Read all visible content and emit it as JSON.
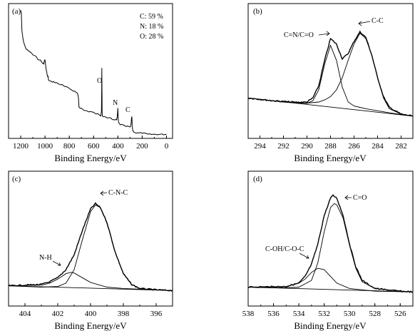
{
  "chart_data": [
    {
      "panel": "(a)",
      "type": "line",
      "xlabel": "Binding Energy/eV",
      "xlim": [
        1300,
        -50
      ],
      "ylim": [
        0,
        100
      ],
      "xticks": [
        1200,
        1000,
        800,
        600,
        400,
        200,
        0
      ],
      "composition": [
        "C: 59 %",
        "N: 18 %",
        "O: 28 %"
      ],
      "peak_labels": [
        {
          "label": "O",
          "x": 532,
          "y": 52
        },
        {
          "label": "N",
          "x": 400,
          "y": 22
        },
        {
          "label": "C",
          "x": 285,
          "y": 15
        }
      ],
      "series": [
        {
          "x": [
            1200,
            1195,
            1190,
            1180,
            1170,
            1160,
            1150,
            1140,
            1120,
            1100,
            1080,
            1060,
            1040,
            1020,
            1010,
            1005,
            1000,
            990,
            980,
            975,
            970,
            950,
            930,
            900,
            880,
            860,
            850,
            800,
            780,
            760,
            740,
            730,
            725,
            720,
            700,
            680,
            660,
            640,
            620,
            600,
            580,
            560,
            545,
            540,
            535,
            532,
            530,
            528,
            520,
            500,
            480,
            460,
            440,
            420,
            410,
            405,
            400,
            398,
            395,
            390,
            380,
            360,
            340,
            320,
            300,
            292,
            288,
            285,
            282,
            278,
            270,
            250,
            200,
            150,
            100,
            50,
            0
          ],
          "y": [
            95,
            93,
            80,
            73,
            70,
            67,
            66,
            65,
            64,
            62,
            61,
            59,
            58,
            56,
            55,
            58,
            58,
            51,
            46,
            46,
            43,
            42,
            42,
            41,
            40,
            40,
            39,
            37,
            36,
            35,
            34,
            33,
            30,
            23,
            22,
            21,
            21,
            20,
            20,
            19,
            18,
            18,
            17,
            17,
            20,
            52,
            20,
            17,
            16,
            16,
            15,
            15,
            14,
            14,
            14,
            16,
            22,
            16,
            12,
            11,
            10,
            10,
            9,
            9,
            8,
            10,
            15,
            16,
            9,
            6,
            5,
            4,
            4,
            3,
            3,
            3,
            3
          ]
        }
      ]
    },
    {
      "panel": "(b)",
      "type": "line",
      "xlabel": "Binding Energy/eV",
      "xlim": [
        295,
        281
      ],
      "ylim": [
        0,
        100
      ],
      "xticks": [
        294,
        292,
        290,
        288,
        286,
        284,
        282
      ],
      "peak_labels": [
        {
          "label": "C=N/C=O",
          "x": 287.9
        },
        {
          "label": "C-C",
          "x": 285.5
        }
      ],
      "series": [
        {
          "name": "C-C",
          "x": [
            295,
            294,
            293,
            292,
            291,
            290,
            289,
            288.5,
            288,
            287.5,
            287,
            286.5,
            286,
            285.5,
            285,
            284.5,
            284,
            283.5,
            283,
            282,
            281
          ],
          "y": [
            30,
            29,
            28,
            27,
            26.4,
            26.2,
            27,
            28.5,
            31,
            36,
            45,
            58,
            70,
            78,
            74,
            62,
            45,
            30,
            22,
            18,
            16.5
          ]
        },
        {
          "name": "C=N/C=O",
          "x": [
            295,
            292,
            290,
            289.5,
            289,
            288.5,
            288,
            287.5,
            287,
            286.5,
            286,
            285.5,
            285,
            283,
            281
          ],
          "y": [
            30,
            27,
            26,
            28,
            36,
            55,
            69,
            58,
            38,
            27,
            24,
            23,
            22,
            19,
            16.5
          ]
        },
        {
          "name": "envelope",
          "x": [
            295,
            293,
            291,
            290,
            289.5,
            289,
            288.5,
            288,
            287.5,
            287,
            286.5,
            286,
            285.5,
            285,
            284.5,
            284,
            283.5,
            283,
            282,
            281
          ],
          "y": [
            30,
            28,
            26.8,
            27,
            30,
            39,
            58,
            74,
            70,
            59,
            63,
            72,
            79,
            75,
            62,
            45,
            31,
            23,
            18,
            16.5
          ]
        }
      ]
    },
    {
      "panel": "(c)",
      "type": "line",
      "xlabel": "Binding Energy/eV",
      "xlim": [
        405,
        395
      ],
      "ylim": [
        0,
        100
      ],
      "xticks": [
        404,
        402,
        400,
        398,
        396
      ],
      "peak_labels": [
        {
          "label": "C-N-C",
          "x": 399.6
        },
        {
          "label": "N-H",
          "x": 401.2
        }
      ],
      "series": [
        {
          "name": "C-N-C",
          "x": [
            405,
            403,
            402,
            401.5,
            401,
            400.5,
            400,
            399.7,
            399.4,
            399,
            398.5,
            398,
            397.5,
            397,
            396,
            395
          ],
          "y": [
            15,
            14,
            14.5,
            17,
            27,
            49,
            70,
            75,
            73,
            62,
            40,
            24,
            16,
            13,
            12,
            11.5
          ]
        },
        {
          "name": "N-H",
          "x": [
            405,
            403,
            402.5,
            402,
            401.5,
            401.2,
            401,
            400.5,
            400,
            399,
            398,
            396,
            395
          ],
          "y": [
            15,
            15.5,
            17,
            20,
            24,
            25,
            24.5,
            21,
            17.5,
            14,
            13,
            12,
            11.5
          ]
        },
        {
          "name": "envelope",
          "x": [
            405,
            403,
            402.5,
            402,
            401.5,
            401,
            400.5,
            400,
            399.7,
            399.4,
            399,
            398.5,
            398,
            397.5,
            397,
            396,
            395
          ],
          "y": [
            15,
            16,
            18,
            21,
            27,
            38,
            56,
            72,
            76,
            73,
            62,
            40,
            24,
            16,
            13,
            12,
            11.5
          ]
        }
      ]
    },
    {
      "panel": "(d)",
      "type": "line",
      "xlabel": "Binding Energy/eV",
      "xlim": [
        538,
        525
      ],
      "ylim": [
        0,
        100
      ],
      "xticks": [
        538,
        536,
        534,
        532,
        530,
        528,
        526
      ],
      "peak_labels": [
        {
          "label": "C=O",
          "x": 531.2
        },
        {
          "label": "C-OH/C-O-C",
          "x": 532.5
        }
      ],
      "series": [
        {
          "name": "C=O",
          "x": [
            538,
            535,
            534,
            533,
            532.5,
            532,
            531.5,
            531.2,
            531,
            530.5,
            530,
            529.5,
            529,
            528,
            526,
            525
          ],
          "y": [
            14,
            13.5,
            14,
            19,
            32,
            55,
            73,
            76,
            75,
            65,
            45,
            28,
            18,
            13,
            11,
            10.5
          ]
        },
        {
          "name": "C-OH/C-O-C",
          "x": [
            538,
            535,
            534,
            533.5,
            533,
            532.5,
            532,
            531.5,
            531,
            530,
            528,
            525
          ],
          "y": [
            14,
            14.5,
            17,
            20,
            25,
            28,
            27,
            22,
            17,
            13,
            11,
            10.5
          ]
        },
        {
          "name": "envelope",
          "x": [
            538,
            535,
            534,
            533.5,
            533,
            532.5,
            532,
            531.5,
            531.3,
            531,
            530.5,
            530,
            529.5,
            529,
            528,
            526,
            525
          ],
          "y": [
            14,
            14.5,
            17,
            22,
            31,
            46,
            67,
            80,
            82,
            80,
            67,
            46,
            29,
            19,
            13,
            11,
            10.5
          ]
        }
      ]
    }
  ]
}
